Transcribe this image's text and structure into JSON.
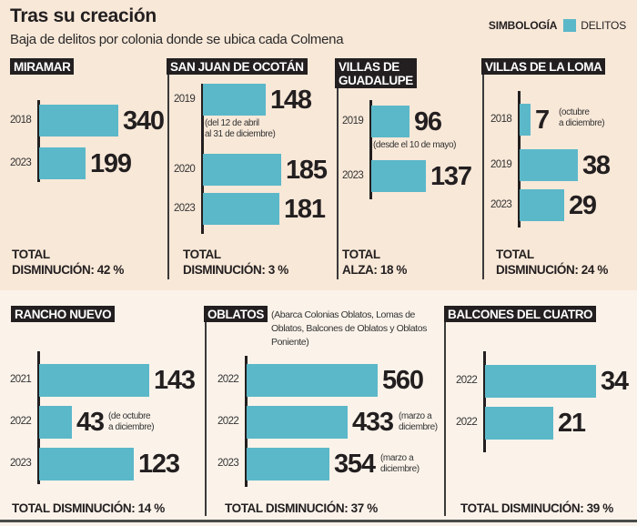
{
  "header": {
    "title": "Tras su creación",
    "subtitle": "Baja de delitos por colonia donde se ubica cada Colmena",
    "legend_label": "SIMBOLOGÍA",
    "legend_item": "DELITOS"
  },
  "colors": {
    "bar": "#5bb8c9",
    "top_background": "#f8e8d8",
    "bottom_background": "#fbf3ea",
    "tag_background": "#231f20"
  },
  "chart_data": [
    {
      "type": "bar",
      "title": "MIRAMAR",
      "categories": [
        "2018",
        "2023"
      ],
      "values": [
        340,
        199
      ],
      "notes": [
        "",
        ""
      ],
      "total_line1": "TOTAL",
      "total_line2": "DISMINUCIÓN: 42 %"
    },
    {
      "type": "bar",
      "title": "SAN JUAN DE OCOTÁN",
      "categories": [
        "2019",
        "2020",
        "2023"
      ],
      "values": [
        148,
        185,
        181
      ],
      "notes": [
        "(del 12 de abril\nal 31 de diciembre)",
        "",
        ""
      ],
      "total_line1": "TOTAL",
      "total_line2": "DISMINUCIÓN: 3 %"
    },
    {
      "type": "bar",
      "title_line1": "VILLAS DE",
      "title_line2": "GUADALUPE",
      "categories": [
        "2019",
        "2023"
      ],
      "values": [
        96,
        137
      ],
      "notes": [
        "(desde el 10 de mayo)",
        ""
      ],
      "total_line1": "TOTAL",
      "total_line2": "ALZA: 18 %"
    },
    {
      "type": "bar",
      "title": "VILLAS DE LA LOMA",
      "categories": [
        "2018",
        "2019",
        "2023"
      ],
      "values": [
        7,
        38,
        29
      ],
      "notes": [
        "(octubre\na diciembre)",
        "",
        ""
      ],
      "total_line1": "TOTAL",
      "total_line2": "DISMINUCIÓN: 24  %"
    },
    {
      "type": "bar",
      "title": "RANCHO NUEVO",
      "categories": [
        "2021",
        "2022",
        "2023"
      ],
      "values": [
        143,
        43,
        123
      ],
      "notes": [
        "",
        "(de octubre\na diciembre)",
        ""
      ],
      "total": "TOTAL DISMINUCIÓN: 14 %"
    },
    {
      "type": "bar",
      "title": "OBLATOS",
      "description": "(Abarca Colonias Oblatos, Lomas de Oblatos, Balcones de Oblatos y Oblatos Poniente)",
      "categories": [
        "2022",
        "2022",
        "2023"
      ],
      "values": [
        560,
        433,
        354
      ],
      "notes": [
        "",
        "(marzo a\ndiciembre)",
        "(marzo a\ndiciembre)"
      ],
      "total": "TOTAL DISMINUCIÓN: 37 %"
    },
    {
      "type": "bar",
      "title": "BALCONES DEL CUATRO",
      "categories": [
        "2022",
        "2022"
      ],
      "values": [
        34,
        21
      ],
      "notes": [
        "",
        ""
      ],
      "total": "TOTAL DISMINUCIÓN: 39 %"
    }
  ]
}
